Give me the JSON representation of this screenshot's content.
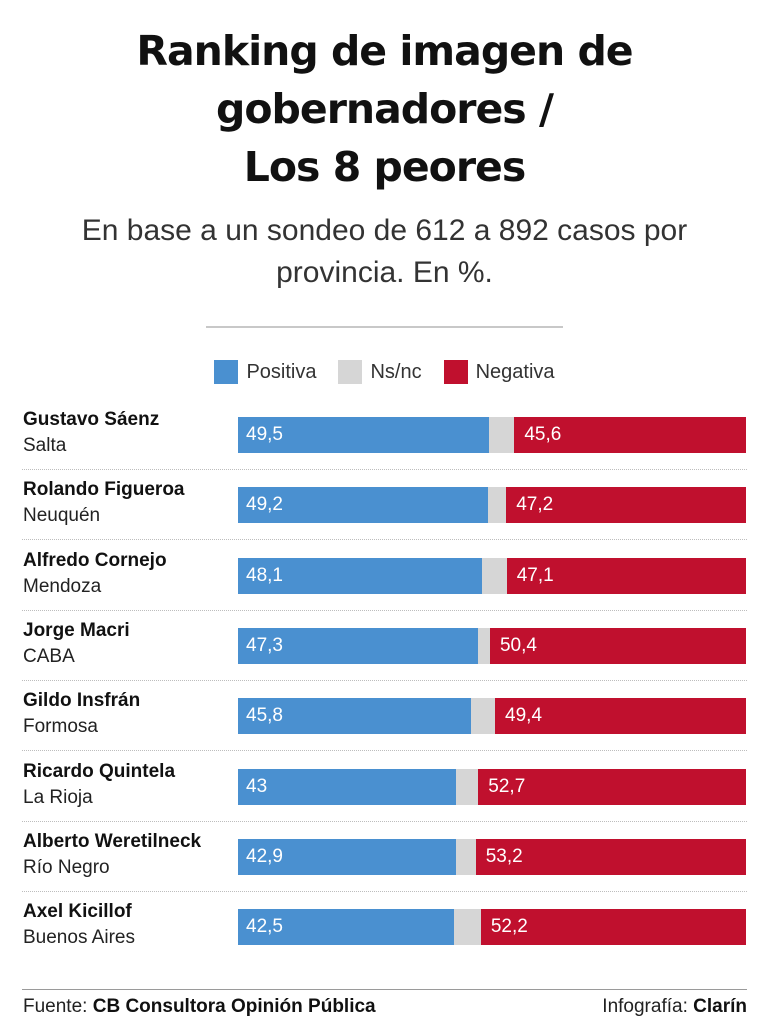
{
  "chart_data": {
    "type": "bar",
    "stacked": true,
    "orientation": "horizontal",
    "title_lines": [
      "Ranking de imagen de",
      "gobernadores /",
      "Los 8 peores"
    ],
    "subtitle_lines": [
      "En base a un sondeo de 612 a 892 casos por",
      "provincia. En %."
    ],
    "legend_placement": "top-center",
    "xlim": [
      0,
      100
    ],
    "grid": false,
    "series_colors": {
      "positiva": "#4a90d0",
      "nsnc": "#d6d6d6",
      "negativa": "#c0102e"
    },
    "legend": [
      {
        "key": "positiva",
        "label": "Positiva"
      },
      {
        "key": "nsnc",
        "label": "Ns/nc"
      },
      {
        "key": "negativa",
        "label": "Negativa"
      }
    ],
    "rows": [
      {
        "name": "Gustavo Sáenz",
        "province": "Salta",
        "positiva": 49.5,
        "positiva_label": "49,5",
        "negativa": 45.6,
        "negativa_label": "45,6"
      },
      {
        "name": "Rolando Figueroa",
        "province": "Neuquén",
        "positiva": 49.2,
        "positiva_label": "49,2",
        "negativa": 47.2,
        "negativa_label": "47,2"
      },
      {
        "name": "Alfredo Cornejo",
        "province": "Mendoza",
        "positiva": 48.1,
        "positiva_label": "48,1",
        "negativa": 47.1,
        "negativa_label": "47,1"
      },
      {
        "name": "Jorge Macri",
        "province": "CABA",
        "positiva": 47.3,
        "positiva_label": "47,3",
        "negativa": 50.4,
        "negativa_label": "50,4"
      },
      {
        "name": "Gildo Insfrán",
        "province": "Formosa",
        "positiva": 45.8,
        "positiva_label": "45,8",
        "negativa": 49.4,
        "negativa_label": "49,4"
      },
      {
        "name": "Ricardo Quintela",
        "province": "La Rioja",
        "positiva": 43,
        "positiva_label": "43",
        "negativa": 52.7,
        "negativa_label": "52,7"
      },
      {
        "name": "Alberto Weretilneck",
        "province": "Río Negro",
        "positiva": 42.9,
        "positiva_label": "42,9",
        "negativa": 53.2,
        "negativa_label": "53,2"
      },
      {
        "name": "Axel Kicillof",
        "province": "Buenos Aires",
        "positiva": 42.5,
        "positiva_label": "42,5",
        "negativa": 52.2,
        "negativa_label": "52,2"
      }
    ]
  },
  "footer": {
    "source_prefix": "Fuente:",
    "source_name": "CB Consultora Opinión Pública",
    "credit_prefix": "Infografía:",
    "credit_name": "Clarín"
  }
}
